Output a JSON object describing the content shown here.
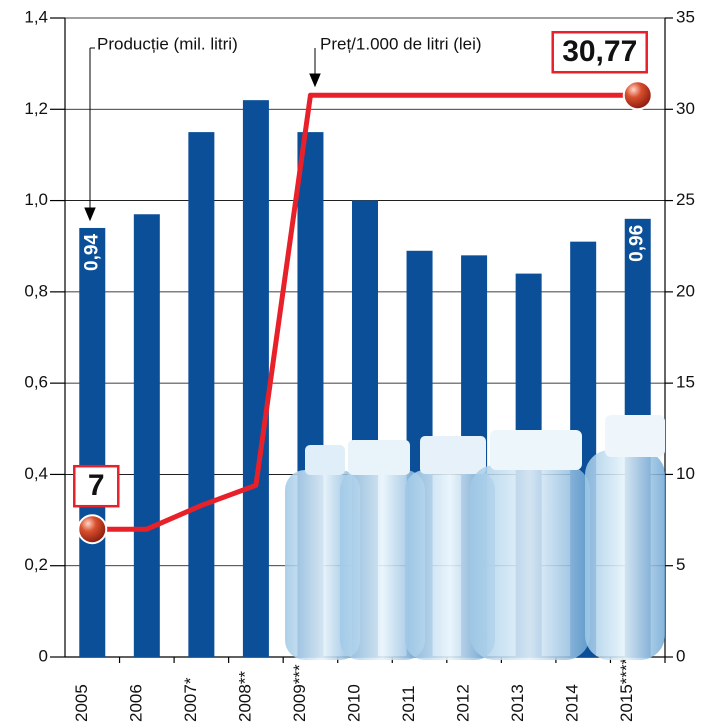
{
  "chart_data": {
    "type": "bar",
    "categories": [
      "2005",
      "2006",
      "2007*",
      "2008**",
      "2009***",
      "2010",
      "2011",
      "2012",
      "2013",
      "2014",
      "2015****"
    ],
    "series": [
      {
        "name": "Producție (mil. litri)",
        "type": "bar",
        "color": "#0b4f98",
        "values": [
          0.94,
          0.97,
          1.15,
          1.22,
          1.15,
          1.0,
          0.89,
          0.88,
          0.84,
          0.91,
          0.96
        ],
        "value_labels": [
          "0,94",
          null,
          null,
          null,
          null,
          null,
          null,
          null,
          null,
          null,
          "0,96"
        ]
      },
      {
        "name": "Preț/1.000 de litri (lei)",
        "type": "line",
        "axis": "y2",
        "color": "#e8202a",
        "values": [
          7,
          7,
          8.3,
          9.4,
          30.77,
          30.77,
          30.77,
          30.77,
          30.77,
          30.77,
          30.77
        ],
        "value_labels": [
          "7",
          null,
          null,
          null,
          null,
          null,
          null,
          null,
          null,
          null,
          "30,77"
        ]
      }
    ],
    "ylim": [
      0,
      1.4
    ],
    "yticks": [
      0,
      {
        "value": 0.2,
        "label": "0,2"
      },
      {
        "value": 0.4,
        "label": "0,4"
      },
      {
        "value": 0.6,
        "label": "0,6"
      },
      {
        "value": 0.8,
        "label": "0,8"
      },
      {
        "value": 1.0,
        "label": "1,0"
      },
      {
        "value": 1.2,
        "label": "1,2"
      },
      {
        "value": 1.4,
        "label": "1,4"
      }
    ],
    "y2lim": [
      0,
      35
    ],
    "y2ticks": [
      0,
      5,
      10,
      15,
      20,
      25,
      30,
      35
    ],
    "grid": true
  }
}
